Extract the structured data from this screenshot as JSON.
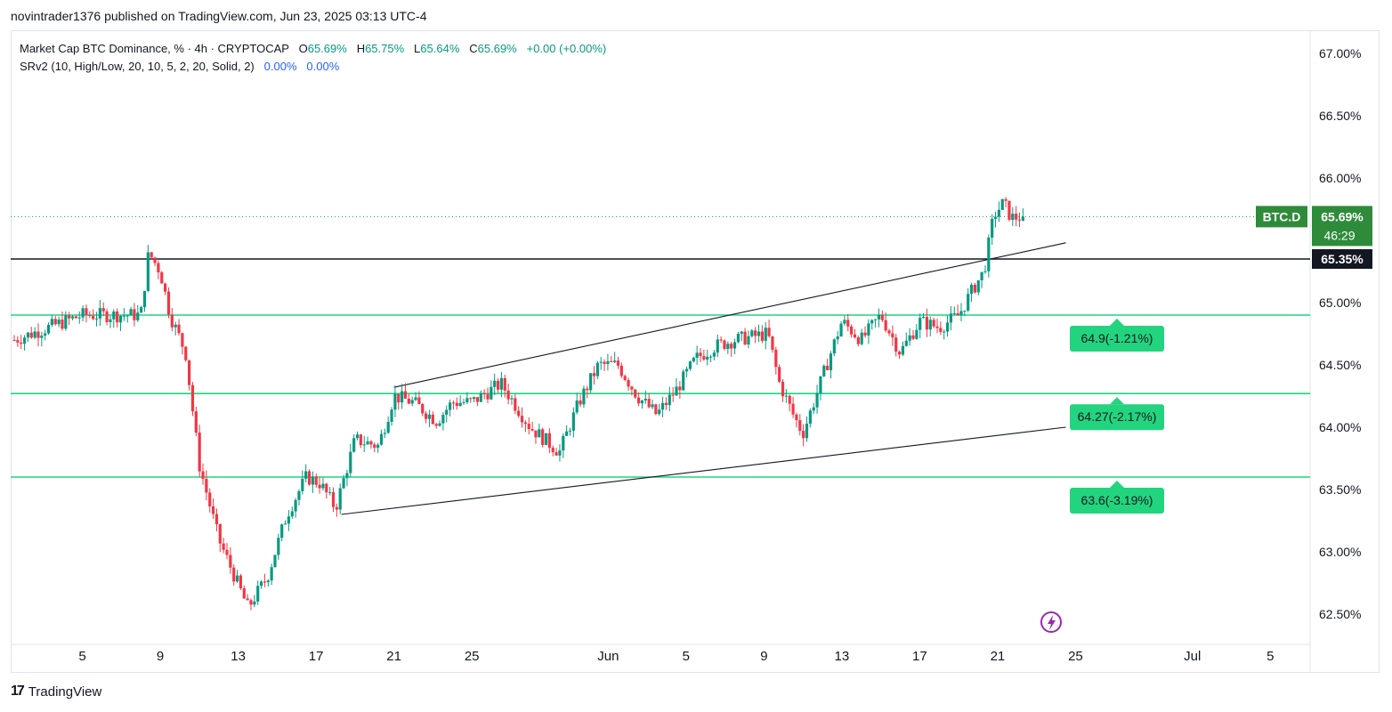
{
  "header": {
    "publisher_line": "novintrader1376 published on TradingView.com, Jun 23, 2025 03:13 UTC-4"
  },
  "legend": {
    "symbol": "Market Cap BTC Dominance, % · 4h · CRYPTOCAP",
    "o_label": "O",
    "o_value": "65.69%",
    "h_label": "H",
    "h_value": "65.75%",
    "l_label": "L",
    "l_value": "65.64%",
    "c_label": "C",
    "c_value": "65.69%",
    "change": "+0.00 (+0.00%)",
    "indicator": "SRv2 (10, High/Low, 20, 10, 5, 2, 20, Solid, 2)",
    "ind_value1": "0.00%",
    "ind_value2": "0.00%"
  },
  "footer": {
    "brand": "TradingView",
    "logo_text": "17"
  },
  "colors": {
    "up": "#089981",
    "down": "#f23645",
    "level": "#22d47e",
    "label_bg": "#22d47e",
    "last_price_bg": "#2e8b3a",
    "resistance_bg": "#131722"
  },
  "chart_data": {
    "type": "candlestick",
    "ylim": [
      62.3,
      67.3
    ],
    "y_ticks": [
      "62.50%",
      "63.00%",
      "63.50%",
      "64.00%",
      "64.50%",
      "65.00%",
      "65.50%",
      "66.00%",
      "66.50%",
      "67.00%"
    ],
    "y_tick_values": [
      62.5,
      63.0,
      63.5,
      64.0,
      64.5,
      65.0,
      65.5,
      66.0,
      66.5,
      67.0
    ],
    "x_ticks": [
      "5",
      "9",
      "13",
      "17",
      "21",
      "25",
      "Jun",
      "5",
      "9",
      "13",
      "17",
      "21",
      "25",
      "Jul",
      "5"
    ],
    "x_tick_days": [
      5,
      9,
      13,
      17,
      21,
      25,
      32,
      36,
      40,
      44,
      48,
      52,
      56,
      62,
      66
    ],
    "x_domain_days": [
      1.5,
      68.0
    ],
    "anchor_days": [
      1.5,
      5,
      8,
      8.4,
      9,
      9.5,
      10.3,
      11,
      12,
      13.5,
      14.5,
      15.5,
      16.5,
      17.2,
      18,
      19,
      20.2,
      21,
      22,
      23.2,
      24,
      25,
      26.5,
      28,
      29.5,
      30.5,
      31.5,
      32.5,
      33.5,
      34.5,
      35.5,
      36.5,
      37.5,
      38.5,
      40.2,
      40.8,
      41.5,
      42,
      43,
      44,
      45,
      46,
      47,
      48,
      49,
      50,
      50.7,
      51.3,
      51.8,
      52.3,
      52.7,
      53.3
    ],
    "anchor_values": [
      64.7,
      64.9,
      64.9,
      65.4,
      65.25,
      64.9,
      64.6,
      63.7,
      63.1,
      62.55,
      62.8,
      63.3,
      63.6,
      63.55,
      63.35,
      63.9,
      63.85,
      64.25,
      64.2,
      64.05,
      64.2,
      64.2,
      64.35,
      64.0,
      63.8,
      64.2,
      64.5,
      64.5,
      64.25,
      64.1,
      64.3,
      64.55,
      64.65,
      64.7,
      64.75,
      64.35,
      64.1,
      63.95,
      64.4,
      64.85,
      64.7,
      64.9,
      64.6,
      64.85,
      64.8,
      64.9,
      65.1,
      65.25,
      65.7,
      65.8,
      65.68,
      65.69
    ],
    "candle_count": 295,
    "last_day": 53.3,
    "levels": [
      {
        "value": 65.35,
        "label": "65.35%",
        "kind": "resistance"
      },
      {
        "value": 64.9,
        "label": "64.9(-1.21%)",
        "kind": "support"
      },
      {
        "value": 64.27,
        "label": "64.27(-2.17%)",
        "kind": "support"
      },
      {
        "value": 63.6,
        "label": "63.6(-3.19%)",
        "kind": "support"
      }
    ],
    "last_price": {
      "value": 65.69,
      "label": "65.69%",
      "countdown": "46:29",
      "symbol": "BTC.D"
    },
    "trendlines": [
      {
        "day1": 21,
        "val1": 64.32,
        "day2": 55.5,
        "val2": 65.48
      },
      {
        "day1": 18.3,
        "val1": 63.3,
        "day2": 55.5,
        "val2": 64.0
      }
    ]
  }
}
